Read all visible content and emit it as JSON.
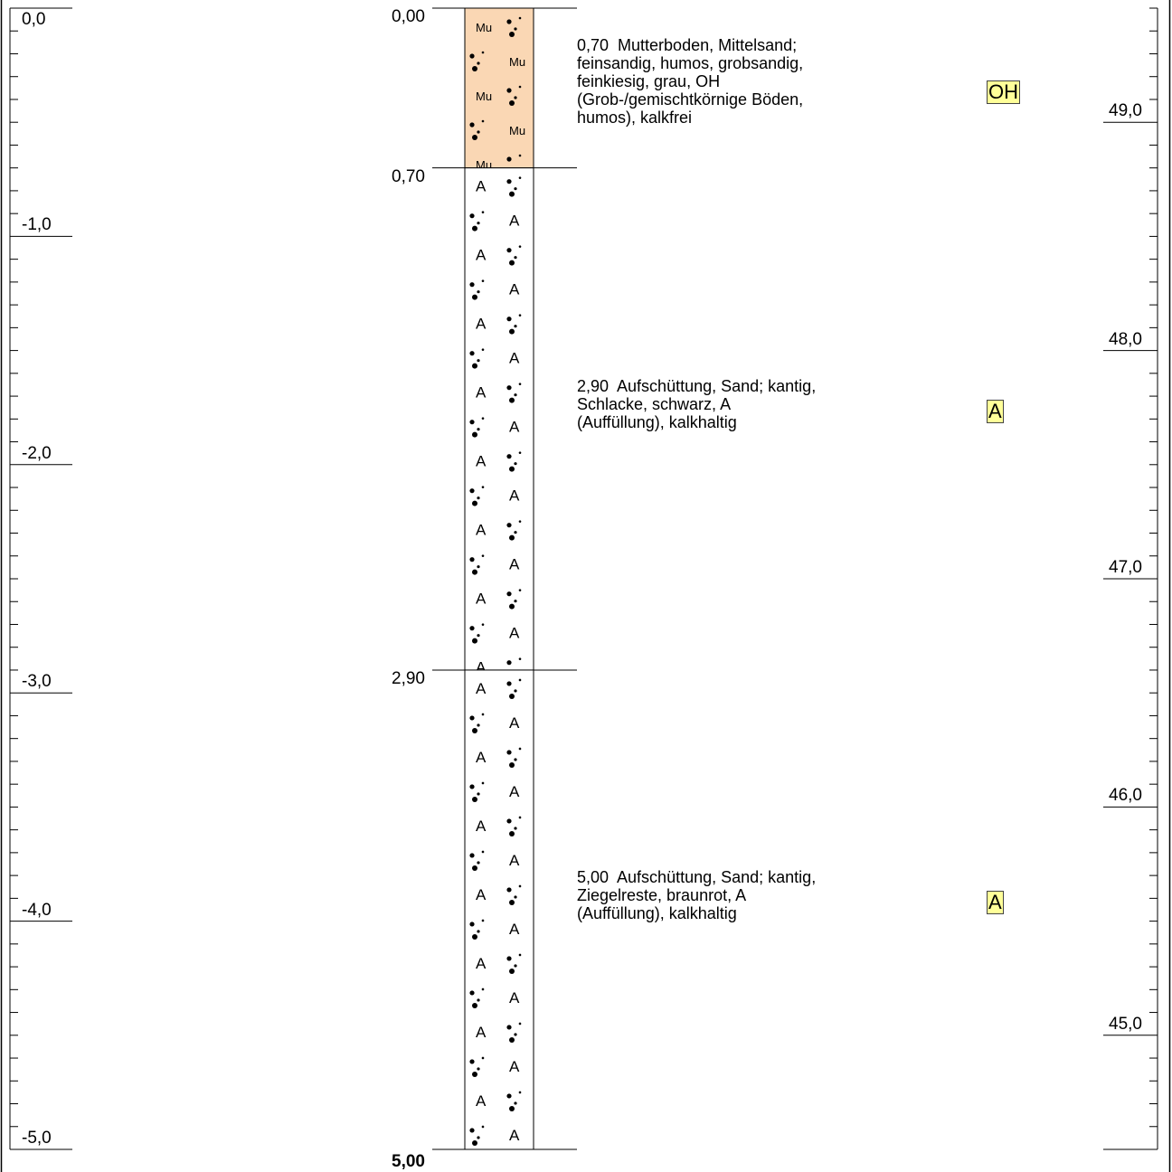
{
  "profile": {
    "depth_scale": {
      "unit": "m",
      "min": 0,
      "max": 5,
      "labels": [
        "0,0",
        "-1,0",
        "-2,0",
        "-3,0",
        "-4,0",
        "-5,0"
      ]
    },
    "elevation_scale": {
      "top_value": 49.5,
      "labels": [
        "49,0",
        "48,0",
        "47,0",
        "46,0",
        "45,0"
      ]
    },
    "layers": [
      {
        "top": 0.0,
        "bottom": 0.7,
        "top_label": "0,00",
        "bottom_label": "0,70",
        "fill": "#fad7b4",
        "pattern": "Mu",
        "description": "0,70  Mutterboden, Mittelsand;\nfeinsandig, humos, grobsandig,\nfeinkiesig, grau, OH\n(Grob-/gemischtkörnige Böden,\nhumos), kalkfrei",
        "code": "OH"
      },
      {
        "top": 0.7,
        "bottom": 2.9,
        "top_label": "0,70",
        "bottom_label": "2,90",
        "fill": "#ffffff",
        "pattern": "A",
        "description": "2,90  Aufschüttung, Sand; kantig,\nSchlacke, schwarz, A\n(Auffüllung), kalkhaltig",
        "code": "A"
      },
      {
        "top": 2.9,
        "bottom": 5.0,
        "top_label": "2,90",
        "bottom_label": "5,00",
        "fill": "#ffffff",
        "pattern": "A",
        "description": "5,00  Aufschüttung, Sand; kantig,\nZiegelreste, braunrot, A\n(Auffüllung), kalkhaltig",
        "code": "A"
      }
    ],
    "final_depth_label": "5,00",
    "colors": {
      "line": "#000000",
      "code_highlight": "#ffff99"
    }
  }
}
